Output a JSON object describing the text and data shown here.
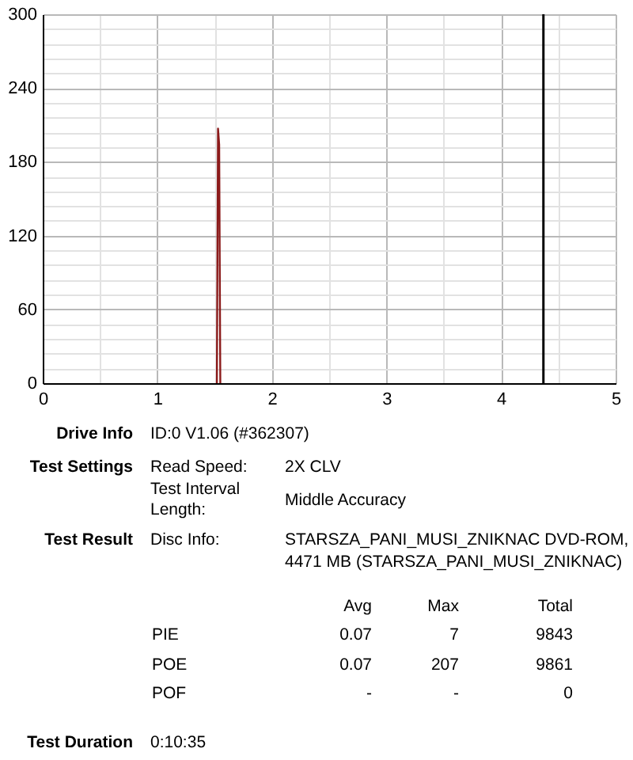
{
  "chart_data": {
    "type": "line",
    "xlim": [
      0,
      5
    ],
    "ylim": [
      0,
      300
    ],
    "xticks": [
      0,
      {
        "value": 0.5,
        "label": null
      },
      1,
      {
        "value": 1.5,
        "label": null
      },
      2,
      {
        "value": 2.5,
        "label": null
      },
      3,
      {
        "value": 3.5,
        "label": null
      },
      4,
      {
        "value": 4.5,
        "label": null
      },
      5
    ],
    "yticks": [
      0,
      {
        "value": 12,
        "label": null
      },
      {
        "value": 24,
        "label": null
      },
      {
        "value": 36,
        "label": null
      },
      {
        "value": 48,
        "label": null
      },
      60,
      {
        "value": 72,
        "label": null
      },
      {
        "value": 84,
        "label": null
      },
      {
        "value": 96,
        "label": null
      },
      {
        "value": 108,
        "label": null
      },
      120,
      {
        "value": 132,
        "label": null
      },
      {
        "value": 144,
        "label": null
      },
      {
        "value": 156,
        "label": null
      },
      {
        "value": 168,
        "label": null
      },
      180,
      {
        "value": 192,
        "label": null
      },
      {
        "value": 204,
        "label": null
      },
      {
        "value": 216,
        "label": null
      },
      {
        "value": 228,
        "label": null
      },
      240,
      {
        "value": 252,
        "label": null
      },
      {
        "value": 264,
        "label": null
      },
      {
        "value": 276,
        "label": null
      },
      {
        "value": 288,
        "label": null
      },
      300
    ],
    "grid": true,
    "series": [
      {
        "color": "#8b1a1a",
        "x": [
          1.52,
          1.53,
          1.54,
          1.55
        ],
        "values": [
          0,
          207,
          194,
          0
        ]
      }
    ],
    "ref_lines": [
      {
        "axis": "x",
        "value": 4.37,
        "color": "#000000"
      }
    ],
    "annotations": [
      "Drive Info",
      "ID:0 V1.06 (#362307)",
      "Test Settings",
      "Read Speed:",
      "2X CLV",
      "Test Interval",
      "Length:",
      "Middle Accuracy",
      "Test Result",
      "Disc Info:",
      "STARSZA_PANI_MUSI_ZNIKNAC DVD-ROM,",
      "4471 MB (STARSZA_PANI_MUSI_ZNIKNAC)",
      "Avg",
      "Max",
      "Total",
      "PIE",
      "0.07",
      "7",
      "9843",
      "POE",
      "0.07",
      "207",
      "9861",
      "POF",
      "-",
      "-",
      "0",
      "Test Duration",
      "0:10:35"
    ]
  }
}
